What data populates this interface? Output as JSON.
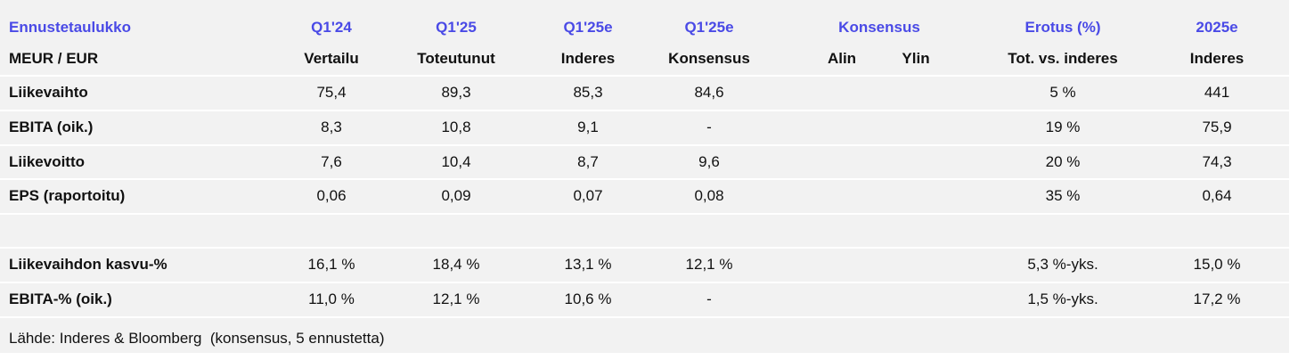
{
  "table": {
    "header1": [
      "Ennustetaulukko",
      "Q1'24",
      "Q1'25",
      "Q1'25e",
      "Q1'25e",
      "Konsensus",
      "Erotus (%)",
      "2025e"
    ],
    "header2": [
      "MEUR / EUR",
      "Vertailu",
      "Toteutunut",
      "Inderes",
      "Konsensus",
      "Alin",
      "Ylin",
      "Tot. vs. inderes",
      "Inderes"
    ],
    "rows": [
      {
        "label": "Liikevaihto",
        "cells": [
          "75,4",
          "89,3",
          "85,3",
          "84,6",
          null,
          null,
          "5 %",
          "441"
        ]
      },
      {
        "label": "EBITA (oik.)",
        "cells": [
          "8,3",
          "10,8",
          "9,1",
          "-",
          null,
          null,
          "19 %",
          "75,9"
        ]
      },
      {
        "label": "Liikevoitto",
        "cells": [
          "7,6",
          "10,4",
          "8,7",
          "9,6",
          null,
          null,
          "20 %",
          "74,3"
        ]
      },
      {
        "label": "EPS (raportoitu)",
        "cells": [
          "0,06",
          "0,09",
          "0,07",
          "0,08",
          null,
          null,
          "35 %",
          "0,64"
        ]
      }
    ],
    "rows2": [
      {
        "label": "Liikevaihdon kasvu-%",
        "cells": [
          "16,1 %",
          "18,4 %",
          "13,1 %",
          "12,1 %",
          null,
          null,
          "5,3 %-yks.",
          "15,0 %"
        ]
      },
      {
        "label": "EBITA-% (oik.)",
        "cells": [
          "11,0 %",
          "12,1 %",
          "10,6 %",
          "-",
          null,
          null,
          "1,5 %-yks.",
          "17,2 %"
        ]
      }
    ],
    "source": "Lähde: Inderes & Bloomberg  (konsensus, 5 ennustetta)"
  }
}
